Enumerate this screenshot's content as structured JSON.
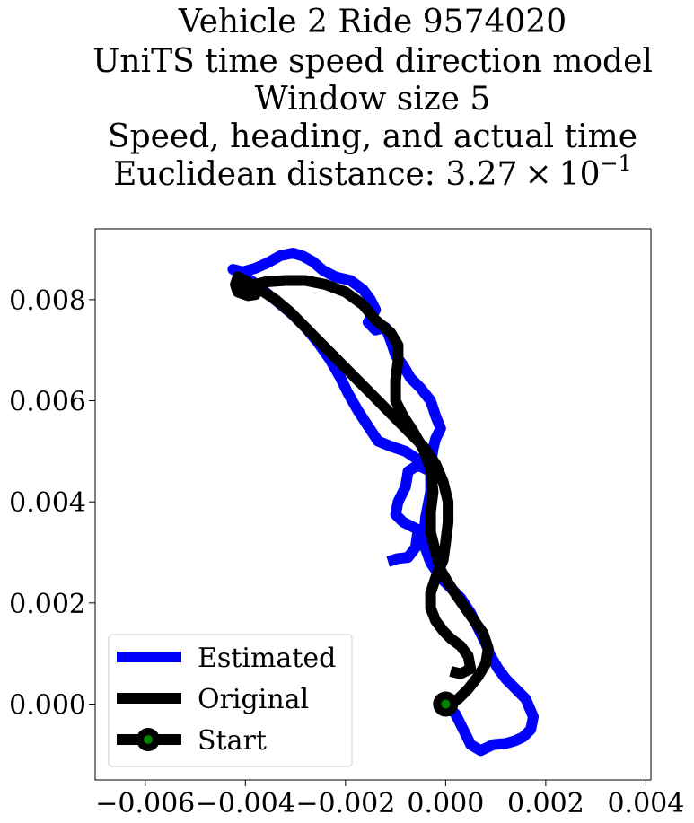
{
  "chart_data": {
    "type": "line",
    "title_lines": [
      "Vehicle 2 Ride 9574020",
      "UniTS time speed direction model",
      "Window size 5",
      "Speed, heading, and actual time"
    ],
    "title_last_prefix": "Euclidean distance: 3.27",
    "title_last_times": "×",
    "title_last_base": "10",
    "title_last_exp": "−1",
    "xlim": [
      -0.007,
      0.0041
    ],
    "ylim": [
      -0.0015,
      0.0094
    ],
    "x_ticks": [
      -0.006,
      -0.004,
      -0.002,
      0.0,
      0.002,
      0.004
    ],
    "x_tick_labels": [
      "−0.006",
      "−0.004",
      "−0.002",
      "0.000",
      "0.002",
      "0.004"
    ],
    "y_ticks": [
      0.0,
      0.002,
      0.004,
      0.006,
      0.008
    ],
    "y_tick_labels": [
      "0.000",
      "0.002",
      "0.004",
      "0.006",
      "0.008"
    ],
    "grid": false,
    "legend_position": "lower-left",
    "series": [
      {
        "name": "Estimated",
        "color": "#0000ff",
        "points": [
          [
            -0.00115,
            0.00282
          ],
          [
            -0.00095,
            0.00288
          ],
          [
            -0.00075,
            0.0029
          ],
          [
            -0.0006,
            0.0031
          ],
          [
            -0.00055,
            0.00345
          ],
          [
            -0.00085,
            0.0036
          ],
          [
            -0.001,
            0.00375
          ],
          [
            -0.00095,
            0.004
          ],
          [
            -0.0008,
            0.0043
          ],
          [
            -0.00075,
            0.0046
          ],
          [
            -0.0006,
            0.0047
          ],
          [
            -0.0005,
            0.0047
          ],
          [
            -0.0003,
            0.0046
          ],
          [
            -0.0001,
            0.00445
          ],
          [
            -0.0002,
            0.0046
          ],
          [
            -0.0005,
            0.0048
          ],
          [
            -0.0008,
            0.005
          ],
          [
            -0.0011,
            0.0051
          ],
          [
            -0.00135,
            0.0052
          ],
          [
            -0.00155,
            0.0055
          ],
          [
            -0.00175,
            0.0058
          ],
          [
            -0.00195,
            0.00615
          ],
          [
            -0.0021,
            0.00645
          ],
          [
            -0.0023,
            0.0068
          ],
          [
            -0.00255,
            0.00715
          ],
          [
            -0.0028,
            0.00745
          ],
          [
            -0.00305,
            0.0077
          ],
          [
            -0.00335,
            0.00795
          ],
          [
            -0.0036,
            0.00815
          ],
          [
            -0.00385,
            0.00835
          ],
          [
            -0.0041,
            0.00852
          ],
          [
            -0.00425,
            0.0086
          ],
          [
            -0.00405,
            0.00855
          ],
          [
            -0.0038,
            0.00862
          ],
          [
            -0.00355,
            0.00873
          ],
          [
            -0.0033,
            0.00887
          ],
          [
            -0.00305,
            0.00892
          ],
          [
            -0.00285,
            0.00886
          ],
          [
            -0.00265,
            0.00875
          ],
          [
            -0.00245,
            0.00858
          ],
          [
            -0.0022,
            0.00845
          ],
          [
            -0.0019,
            0.00838
          ],
          [
            -0.00165,
            0.0082
          ],
          [
            -0.0015,
            0.008
          ],
          [
            -0.0014,
            0.0078
          ],
          [
            -0.00155,
            0.00755
          ],
          [
            -0.0014,
            0.0074
          ],
          [
            -0.0012,
            0.00745
          ],
          [
            -0.0011,
            0.0072
          ],
          [
            -0.001,
            0.0069
          ],
          [
            -0.00085,
            0.0067
          ],
          [
            -0.0007,
            0.00645
          ],
          [
            -0.0005,
            0.00625
          ],
          [
            -0.0003,
            0.006
          ],
          [
            -0.0002,
            0.0057
          ],
          [
            -0.0001,
            0.00545
          ],
          [
            -0.0002,
            0.00525
          ],
          [
            -0.00025,
            0.00505
          ],
          [
            -0.0003,
            0.0047
          ],
          [
            -0.0003,
            0.0042
          ],
          [
            -0.0004,
            0.0037
          ],
          [
            -0.00045,
            0.0032
          ],
          [
            -0.0003,
            0.0028
          ],
          [
            -0.0001,
            0.0025
          ],
          [
            0.0001,
            0.0023
          ],
          [
            0.0003,
            0.0021
          ],
          [
            0.0005,
            0.0018
          ],
          [
            0.00065,
            0.0015
          ],
          [
            0.0008,
            0.0012
          ],
          [
            0.0009,
            0.00095
          ],
          [
            0.00105,
            0.0007
          ],
          [
            0.0012,
            0.0005
          ],
          [
            0.0014,
            0.0003
          ],
          [
            0.0016,
            0.0001
          ],
          [
            0.00175,
            -0.00025
          ],
          [
            0.0017,
            -0.0005
          ],
          [
            0.00155,
            -0.00065
          ],
          [
            0.0014,
            -0.00072
          ],
          [
            0.0012,
            -0.00078
          ],
          [
            0.00095,
            -0.0008
          ],
          [
            0.0007,
            -0.00092
          ],
          [
            0.0005,
            -0.0008
          ],
          [
            0.0004,
            -0.0006
          ],
          [
            0.0003,
            -0.0004
          ],
          [
            0.0002,
            -0.0002
          ],
          [
            5e-05,
            -5e-05
          ],
          [
            0.0,
            0.0
          ]
        ]
      },
      {
        "name": "Original",
        "color": "#000000",
        "points": [
          [
            0.0001,
            0.00065
          ],
          [
            0.0003,
            0.0006
          ],
          [
            0.0005,
            0.0007
          ],
          [
            0.00045,
            0.00095
          ],
          [
            0.0003,
            0.00115
          ],
          [
            0.0001,
            0.0013
          ],
          [
            -5e-05,
            0.00145
          ],
          [
            -0.0002,
            0.00165
          ],
          [
            -0.0003,
            0.0019
          ],
          [
            -0.0003,
            0.0022
          ],
          [
            -0.0002,
            0.0025
          ],
          [
            -5e-05,
            0.00285
          ],
          [
            0.0,
            0.0032
          ],
          [
            5e-05,
            0.0036
          ],
          [
            5e-05,
            0.004
          ],
          [
            -5e-05,
            0.0044
          ],
          [
            -0.0002,
            0.00475
          ],
          [
            -0.00045,
            0.0051
          ],
          [
            -0.00075,
            0.0054
          ],
          [
            -0.00105,
            0.0057
          ],
          [
            -0.0014,
            0.00605
          ],
          [
            -0.00175,
            0.0064
          ],
          [
            -0.0021,
            0.00675
          ],
          [
            -0.00245,
            0.0071
          ],
          [
            -0.0028,
            0.00745
          ],
          [
            -0.0031,
            0.00775
          ],
          [
            -0.0034,
            0.008
          ],
          [
            -0.0037,
            0.0082
          ],
          [
            -0.00395,
            0.00835
          ],
          [
            -0.00415,
            0.00845
          ],
          [
            -0.0042,
            0.0083
          ],
          [
            -0.00415,
            0.00815
          ],
          [
            -0.00395,
            0.00808
          ],
          [
            -0.0038,
            0.0081
          ],
          [
            -0.00395,
            0.00815
          ],
          [
            -0.00405,
            0.0082
          ],
          [
            -0.0039,
            0.00828
          ],
          [
            -0.0036,
            0.00835
          ],
          [
            -0.0032,
            0.00838
          ],
          [
            -0.0028,
            0.00838
          ],
          [
            -0.0024,
            0.0083
          ],
          [
            -0.002,
            0.00815
          ],
          [
            -0.00165,
            0.0079
          ],
          [
            -0.0014,
            0.0076
          ],
          [
            -0.0011,
            0.00735
          ],
          [
            -0.00095,
            0.0071
          ],
          [
            -0.00095,
            0.0068
          ],
          [
            -0.001,
            0.0064
          ],
          [
            -0.001,
            0.006
          ],
          [
            -0.00085,
            0.0057
          ],
          [
            -0.00065,
            0.0054
          ],
          [
            -0.00045,
            0.00505
          ],
          [
            -0.0003,
            0.00465
          ],
          [
            -0.00025,
            0.0042
          ],
          [
            -0.0003,
            0.0038
          ],
          [
            -0.0003,
            0.0034
          ],
          [
            -0.0002,
            0.003
          ],
          [
            -0.0001,
            0.00265
          ],
          [
            5e-05,
            0.0024
          ],
          [
            0.00025,
            0.0021
          ],
          [
            0.0005,
            0.00175
          ],
          [
            0.00075,
            0.0014
          ],
          [
            0.00085,
            0.0011
          ],
          [
            0.0008,
            0.0008
          ],
          [
            0.00065,
            0.00055
          ],
          [
            0.00045,
            0.0003
          ],
          [
            0.00025,
            0.0001
          ],
          [
            0.0,
            0.0
          ]
        ]
      },
      {
        "name": "Start",
        "color": "#000000",
        "marker_face_color": "#008000",
        "points": [
          [
            0.0,
            0.0
          ]
        ]
      }
    ]
  }
}
